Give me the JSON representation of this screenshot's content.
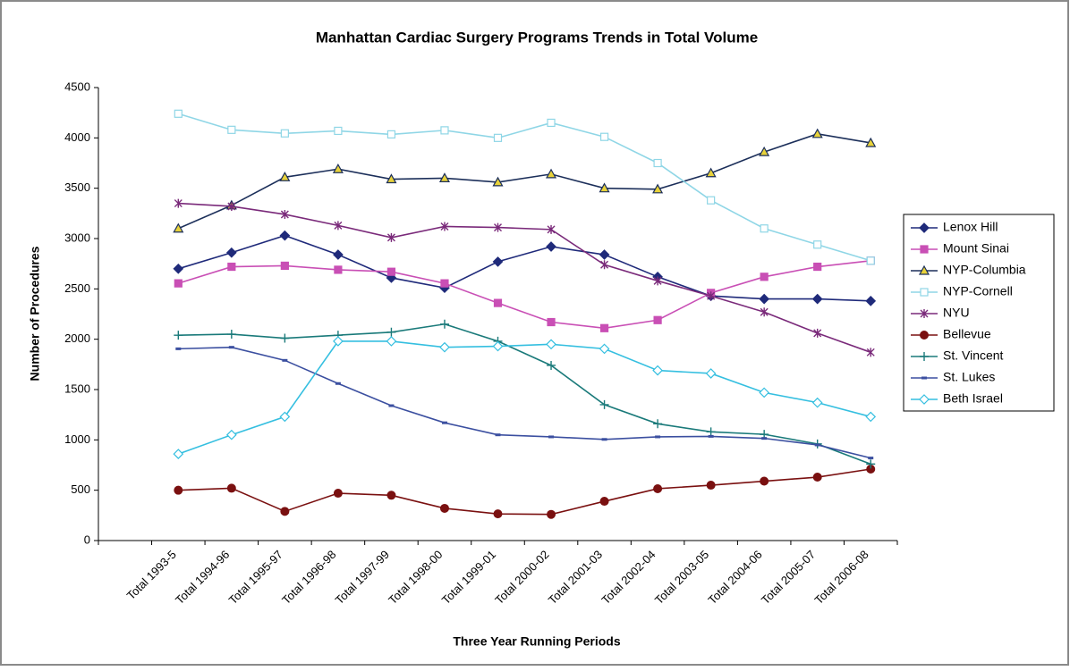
{
  "chart_data": {
    "type": "line",
    "title": "Manhattan Cardiac Surgery Programs Trends in Total Volume",
    "x_label": "Three Year Running Periods",
    "y_label": "Number of Procedures",
    "categories": [
      null,
      "Total 1993-5",
      "Total 1994-96",
      "Total 1995-97",
      "Total 1996-98",
      "Total 1997-99",
      "Total 1998-00",
      "Total 1999-01",
      "Total 2000-02",
      "Total 2001-03",
      "Total 2002-04",
      "Total 2003-05",
      "Total 2004-06",
      "Total 2005-07",
      "Total 2006-08"
    ],
    "ylim": [
      0,
      4500
    ],
    "yticks": [
      0,
      500,
      1000,
      1500,
      2000,
      2500,
      3000,
      3500,
      4000,
      4500
    ],
    "legend": "right",
    "series": [
      {
        "name": "Lenox Hill",
        "color": "#1f2a7a",
        "marker": "diamond",
        "marker_fill": "#1f2a7a",
        "values": [
          null,
          2700,
          2860,
          3030,
          2840,
          2610,
          2510,
          2770,
          2920,
          2840,
          2620,
          2430,
          2400,
          2400,
          2380
        ]
      },
      {
        "name": "Mount Sinai",
        "color": "#c94fb5",
        "marker": "square",
        "marker_fill": "#c94fb5",
        "values": [
          null,
          2555,
          2720,
          2730,
          2690,
          2670,
          2555,
          2360,
          2170,
          2110,
          2190,
          2460,
          2620,
          2720,
          2780
        ]
      },
      {
        "name": "NYP-Columbia",
        "color": "#1c2f5a",
        "marker": "triangle",
        "marker_fill": "#e8d23a",
        "values": [
          null,
          3100,
          3330,
          3610,
          3690,
          3590,
          3600,
          3560,
          3640,
          3500,
          3490,
          3650,
          3860,
          4040,
          3950
        ]
      },
      {
        "name": "NYP-Cornell",
        "color": "#8fd6e6",
        "marker": "square",
        "marker_fill": "#ffffff",
        "values": [
          null,
          4240,
          4080,
          4045,
          4070,
          4035,
          4075,
          4000,
          4150,
          4010,
          3750,
          3380,
          3100,
          2940,
          2780
        ]
      },
      {
        "name": "NYU",
        "color": "#7a2a7a",
        "marker": "star",
        "marker_fill": "#7a2a7a",
        "values": [
          null,
          3350,
          3320,
          3240,
          3130,
          3010,
          3120,
          3110,
          3090,
          2740,
          2580,
          2430,
          2270,
          2060,
          1870
        ]
      },
      {
        "name": "Bellevue",
        "color": "#7a1010",
        "marker": "circle",
        "marker_fill": "#7a1010",
        "values": [
          null,
          500,
          520,
          290,
          470,
          450,
          320,
          265,
          260,
          390,
          515,
          550,
          590,
          630,
          710
        ]
      },
      {
        "name": "St. Vincent",
        "color": "#1a7a7a",
        "marker": "plus",
        "marker_fill": "#1a7a7a",
        "values": [
          null,
          2040,
          2050,
          2010,
          2040,
          2070,
          2150,
          1980,
          1740,
          1350,
          1160,
          1080,
          1055,
          960,
          760
        ]
      },
      {
        "name": "St. Lukes",
        "color": "#3b4fa0",
        "marker": "dash",
        "marker_fill": "#3b4fa0",
        "values": [
          null,
          1905,
          1920,
          1790,
          1560,
          1340,
          1170,
          1050,
          1030,
          1005,
          1030,
          1035,
          1015,
          950,
          820
        ]
      },
      {
        "name": "Beth Israel",
        "color": "#35bfe0",
        "marker": "diamond",
        "marker_fill": "#ffffff",
        "values": [
          null,
          860,
          1050,
          1230,
          1980,
          1980,
          1920,
          1930,
          1950,
          1905,
          1690,
          1660,
          1470,
          1370,
          1230
        ]
      }
    ]
  }
}
